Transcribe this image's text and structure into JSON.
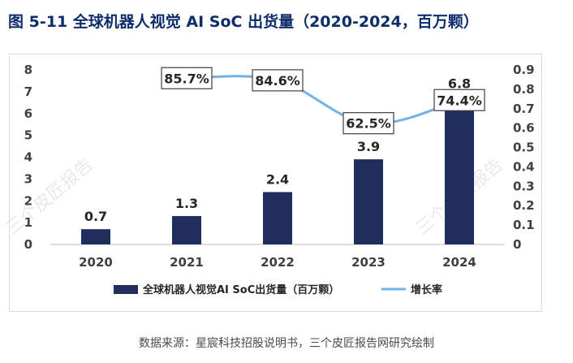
{
  "title": "图 5-11 全球机器人视觉 AI SoC 出货量（2020-2024，百万颗）",
  "source": "数据来源：星宸科技招股说明书，三个皮匠报告网研究绘制",
  "watermark": "三个皮匠报告",
  "colors": {
    "bar": "#1f2e5c",
    "line": "#6fb3ea",
    "title": "#0d2d6b"
  },
  "chart_data": {
    "type": "bar",
    "categories": [
      "2020",
      "2021",
      "2022",
      "2023",
      "2024"
    ],
    "series": [
      {
        "name": "全球机器人视觉AI SoC出货量（百万颗）",
        "type": "bar",
        "axis": "left",
        "values": [
          0.7,
          1.3,
          2.4,
          3.9,
          6.8
        ],
        "labels": [
          "0.7",
          "1.3",
          "2.4",
          "3.9",
          "6.8"
        ]
      },
      {
        "name": "增长率",
        "type": "line",
        "axis": "right",
        "values": [
          null,
          0.857,
          0.846,
          0.625,
          0.744
        ],
        "labels": [
          "",
          "85.7%",
          "84.6%",
          "62.5%",
          "74.4%"
        ]
      }
    ],
    "y_left": {
      "min": 0,
      "max": 8,
      "ticks": [
        "0",
        "1",
        "2",
        "3",
        "4",
        "5",
        "6",
        "7",
        "8"
      ]
    },
    "y_right": {
      "min": 0,
      "max": 0.9,
      "ticks": [
        "0",
        "0.1",
        "0.2",
        "0.3",
        "0.4",
        "0.5",
        "0.6",
        "0.7",
        "0.8",
        "0.9"
      ]
    },
    "legend": [
      "全球机器人视觉AI SoC出货量（百万颗）",
      "增长率"
    ],
    "legend_position": "bottom"
  }
}
